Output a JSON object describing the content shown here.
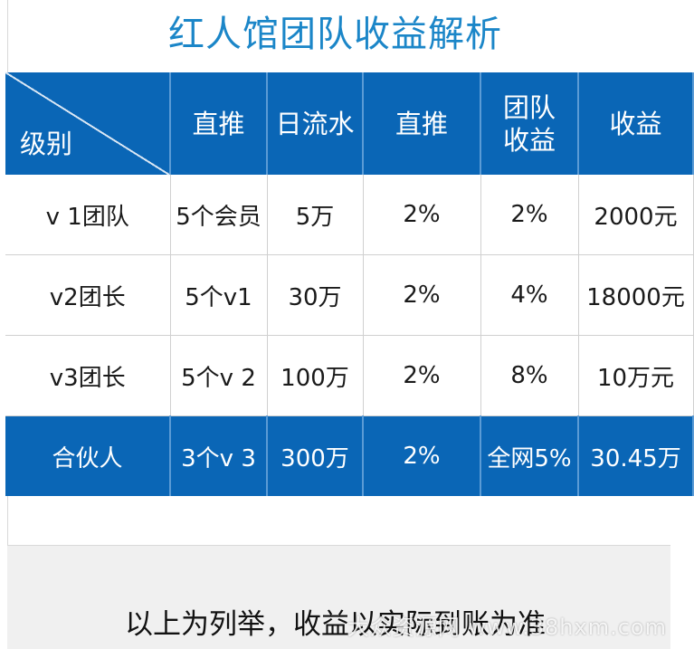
{
  "title": "红人馆团队收益解析",
  "table": {
    "corner_label": "级别",
    "headers": [
      "直推",
      "日流水",
      "直推",
      "团队\n收益",
      "收益"
    ],
    "rows": [
      {
        "level": "v 1团队",
        "direct_push": "5个会员",
        "daily_flow": "5万",
        "direct_rate": "2%",
        "team_rate": "2%",
        "income": "2000元"
      },
      {
        "level": "v2团长",
        "direct_push": "5个v1",
        "daily_flow": "30万",
        "direct_rate": "2%",
        "team_rate": "4%",
        "income": "18000元"
      },
      {
        "level": "v3团长",
        "direct_push": "5个v 2",
        "daily_flow": "100万",
        "direct_rate": "2%",
        "team_rate": "8%",
        "income": "10万元"
      }
    ],
    "total_row": {
      "level": "合伙人",
      "direct_push": "3个v 3",
      "daily_flow": "300万",
      "direct_rate": "2%",
      "team_rate": "全网5%",
      "income": "30.45万"
    }
  },
  "footer": {
    "note": "以上为列举，收益以实际到账为准"
  },
  "watermark": "大众资源网 www.38hxm.com",
  "colors": {
    "title": "#1b86c8",
    "header_bg": "#0a66b6",
    "header_text": "#ffffff",
    "body_text": "#1a1a1a"
  }
}
